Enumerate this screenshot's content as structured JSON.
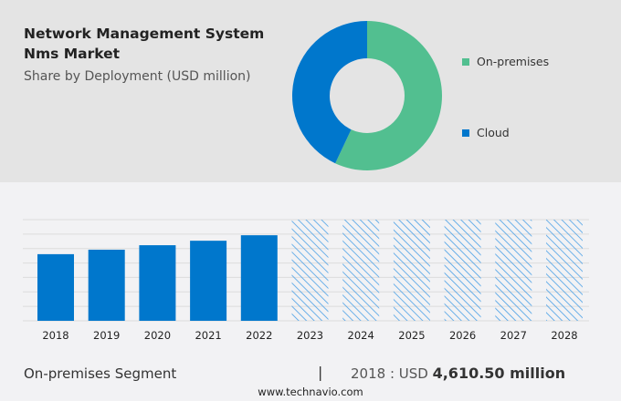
{
  "title": "Network Management System Nms Market",
  "subtitle": "Share by Deployment (USD million)",
  "colors": {
    "on_premises": "#52bf90",
    "cloud": "#0077cc",
    "bar": "#0077cc",
    "hatch": "#4aa0e6"
  },
  "chart_data": [
    {
      "type": "pie",
      "donut": true,
      "legend": "right",
      "slices": [
        {
          "name": "On-premises",
          "value": 57
        },
        {
          "name": "Cloud",
          "value": 43
        }
      ]
    },
    {
      "type": "bar",
      "categories": [
        "2018",
        "2019",
        "2020",
        "2021",
        "2022",
        "2023",
        "2024",
        "2025",
        "2026",
        "2027",
        "2028"
      ],
      "values": [
        4610.5,
        4920,
        5230,
        5540,
        5920,
        null,
        null,
        null,
        null,
        null,
        null
      ],
      "forecast_from": "2023",
      "ylim": [
        0,
        7000
      ],
      "grid": true,
      "yaxis_labels": false
    }
  ],
  "footer": {
    "segment": "On-premises Segment",
    "separator": "|",
    "year_prefix": "2018 : USD ",
    "value": "4,610.50 million",
    "site": "www.technavio.com"
  }
}
